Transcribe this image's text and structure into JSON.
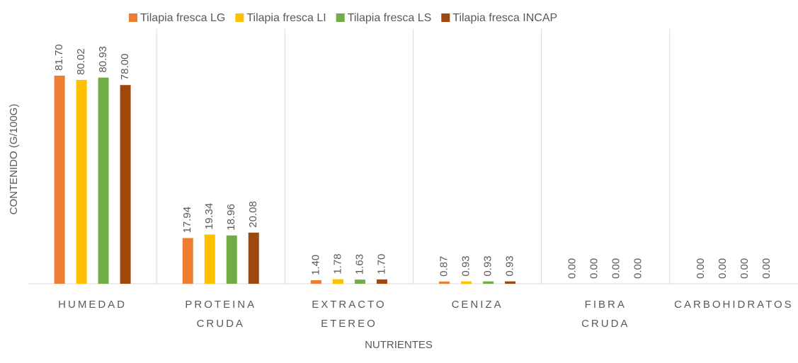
{
  "chart_data": {
    "type": "bar",
    "ylabel": "CONTENIDO  (G/100G)",
    "xlabel": "NUTRIENTES",
    "categories": [
      [
        "HUMEDAD"
      ],
      [
        "PROTEINA",
        "CRUDA"
      ],
      [
        "EXTRACTO",
        "ETEREO"
      ],
      [
        "CENIZA"
      ],
      [
        "FIBRA",
        "CRUDA"
      ],
      [
        "CARBOHIDRATOS"
      ]
    ],
    "series": [
      {
        "name": "Tilapia fresca LG",
        "color": "#ed7d31",
        "values": [
          81.7,
          17.94,
          1.4,
          0.87,
          0,
          0
        ],
        "value_labels": [
          "81.70",
          "17.94",
          "1.40",
          "0.87",
          "0.00",
          "0.00"
        ]
      },
      {
        "name": "Tilapia fresca LI",
        "color": "#ffc000",
        "values": [
          80.02,
          19.34,
          1.78,
          0.93,
          0,
          0
        ],
        "value_labels": [
          "80.02",
          "19.34",
          "1.78",
          "0.93",
          "0.00",
          "0.00"
        ]
      },
      {
        "name": "Tilapia fresca LS",
        "color": "#70ad47",
        "values": [
          80.93,
          18.96,
          1.63,
          0.93,
          0,
          0
        ],
        "value_labels": [
          "80.93",
          "18.96",
          "1.63",
          "0.93",
          "0.00",
          "0.00"
        ]
      },
      {
        "name": "Tilapia fresca INCAP",
        "color": "#9e480e",
        "values": [
          78.0,
          20.08,
          1.7,
          0.93,
          0,
          0
        ],
        "value_labels": [
          "78.00",
          "20.08",
          "1.70",
          "0.93",
          "0.00",
          "0.00"
        ]
      }
    ],
    "ylim": [
      0,
      100
    ],
    "legend": "top"
  }
}
